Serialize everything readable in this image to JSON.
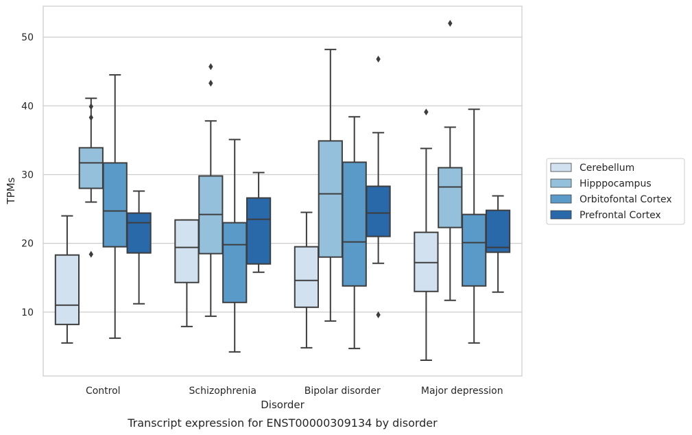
{
  "chart_data": {
    "type": "box",
    "caption": "Transcript expression for ENST00000309134 by disorder",
    "xlabel": "Disorder",
    "ylabel": "TPMs",
    "ylim": [
      0.7,
      54.5
    ],
    "yticks": [
      10,
      20,
      30,
      40,
      50
    ],
    "grid": "horizontal",
    "legend_position": "right",
    "categories": [
      "Control",
      "Schizophrenia",
      "Bipolar disorder",
      "Major depression"
    ],
    "series": [
      {
        "name": "Cerebellum",
        "color": "#d1e1f0",
        "boxes": [
          {
            "whislo": 5.5,
            "q1": 8.2,
            "med": 11.0,
            "q3": 18.3,
            "whishi": 24.0,
            "fliers": []
          },
          {
            "whislo": 7.9,
            "q1": 14.3,
            "med": 19.4,
            "q3": 23.4,
            "whishi": 23.4,
            "fliers": []
          },
          {
            "whislo": 4.8,
            "q1": 10.7,
            "med": 14.6,
            "q3": 19.5,
            "whishi": 24.5,
            "fliers": []
          },
          {
            "whislo": 3.0,
            "q1": 13.0,
            "med": 17.2,
            "q3": 21.6,
            "whishi": 33.8,
            "fliers": [
              39.1
            ]
          }
        ]
      },
      {
        "name": "Hipppocampus",
        "color": "#94c0dc",
        "boxes": [
          {
            "whislo": 26.0,
            "q1": 28.0,
            "med": 31.7,
            "q3": 33.9,
            "whishi": 41.1,
            "fliers": [
              39.9,
              38.3,
              18.4
            ]
          },
          {
            "whislo": 9.4,
            "q1": 18.5,
            "med": 24.2,
            "q3": 29.8,
            "whishi": 37.8,
            "fliers": [
              45.7,
              43.3
            ]
          },
          {
            "whislo": 8.7,
            "q1": 18.0,
            "med": 27.2,
            "q3": 34.9,
            "whishi": 48.2,
            "fliers": []
          },
          {
            "whislo": 11.7,
            "q1": 22.3,
            "med": 28.2,
            "q3": 31.0,
            "whishi": 36.9,
            "fliers": [
              52.0
            ]
          }
        ]
      },
      {
        "name": "Orbitofontal Cortex",
        "color": "#5a9ac8",
        "boxes": [
          {
            "whislo": 6.2,
            "q1": 19.5,
            "med": 24.7,
            "q3": 31.7,
            "whishi": 44.5,
            "fliers": []
          },
          {
            "whislo": 4.2,
            "q1": 11.4,
            "med": 19.8,
            "q3": 23.0,
            "whishi": 35.1,
            "fliers": []
          },
          {
            "whislo": 4.7,
            "q1": 13.8,
            "med": 20.2,
            "q3": 31.8,
            "whishi": 38.4,
            "fliers": []
          },
          {
            "whislo": 5.5,
            "q1": 13.8,
            "med": 20.1,
            "q3": 24.2,
            "whishi": 39.5,
            "fliers": []
          }
        ]
      },
      {
        "name": "Prefrontal Cortex",
        "color": "#2968a9",
        "boxes": [
          {
            "whislo": 11.2,
            "q1": 18.6,
            "med": 23.0,
            "q3": 24.4,
            "whishi": 27.6,
            "fliers": []
          },
          {
            "whislo": 15.8,
            "q1": 17.0,
            "med": 23.5,
            "q3": 26.6,
            "whishi": 30.3,
            "fliers": []
          },
          {
            "whislo": 17.1,
            "q1": 21.0,
            "med": 24.4,
            "q3": 28.3,
            "whishi": 36.1,
            "fliers": [
              46.8,
              9.6
            ]
          },
          {
            "whislo": 12.9,
            "q1": 18.7,
            "med": 19.4,
            "q3": 24.8,
            "whishi": 26.9,
            "fliers": []
          }
        ]
      }
    ]
  }
}
